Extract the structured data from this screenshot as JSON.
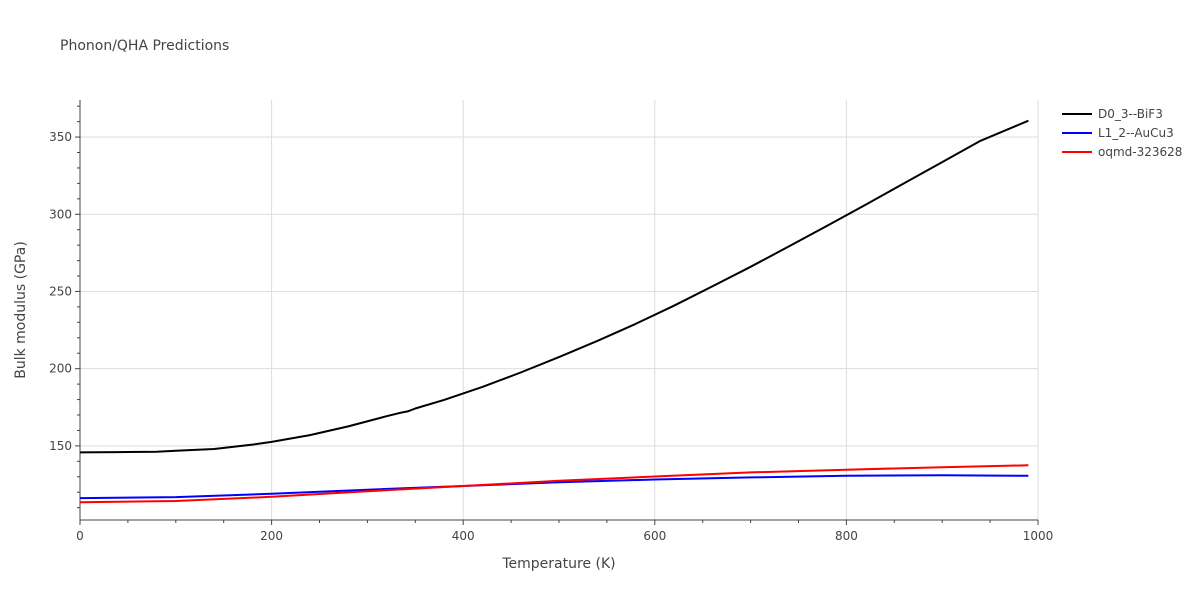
{
  "chart_data": {
    "type": "line",
    "title": "Phonon/QHA Predictions",
    "xlabel": "Temperature (K)",
    "ylabel": "Bulk modulus (GPa)",
    "xlim": [
      0,
      1000
    ],
    "ylim": [
      102,
      374
    ],
    "x_ticks": [
      0,
      200,
      400,
      600,
      800,
      1000
    ],
    "y_ticks": [
      150,
      200,
      250,
      300,
      350
    ],
    "grid": true,
    "legend_position": "top-right",
    "series": [
      {
        "name": "D0_3--BiF3",
        "color": "#000000",
        "points": [
          [
            0,
            145.8
          ],
          [
            40,
            146.0
          ],
          [
            80,
            146.2
          ],
          [
            100,
            146.8
          ],
          [
            140,
            148.0
          ],
          [
            180,
            150.8
          ],
          [
            200,
            152.6
          ],
          [
            240,
            157.0
          ],
          [
            280,
            162.6
          ],
          [
            320,
            169.2
          ],
          [
            335,
            171.5
          ],
          [
            342,
            172.3
          ],
          [
            350,
            174.2
          ],
          [
            380,
            179.8
          ],
          [
            420,
            188.2
          ],
          [
            460,
            197.5
          ],
          [
            500,
            207.5
          ],
          [
            540,
            218.0
          ],
          [
            580,
            229.0
          ],
          [
            620,
            240.8
          ],
          [
            660,
            253.3
          ],
          [
            700,
            266.0
          ],
          [
            740,
            279.2
          ],
          [
            780,
            292.6
          ],
          [
            820,
            306.2
          ],
          [
            860,
            320.0
          ],
          [
            900,
            333.8
          ],
          [
            940,
            347.6
          ],
          [
            990,
            360.6
          ]
        ]
      },
      {
        "name": "L1_2--AuCu3",
        "color": "#0000ff",
        "points": [
          [
            0,
            116.2
          ],
          [
            100,
            116.8
          ],
          [
            200,
            119.0
          ],
          [
            300,
            121.6
          ],
          [
            400,
            124.0
          ],
          [
            500,
            126.4
          ],
          [
            600,
            128.2
          ],
          [
            700,
            129.6
          ],
          [
            800,
            130.6
          ],
          [
            900,
            131.0
          ],
          [
            990,
            130.6
          ]
        ]
      },
      {
        "name": "oqmd-323628",
        "color": "#ff0000",
        "points": [
          [
            0,
            113.5
          ],
          [
            100,
            114.3
          ],
          [
            200,
            117.0
          ],
          [
            300,
            120.6
          ],
          [
            400,
            124.0
          ],
          [
            500,
            127.4
          ],
          [
            600,
            130.2
          ],
          [
            700,
            132.8
          ],
          [
            800,
            134.6
          ],
          [
            900,
            136.2
          ],
          [
            990,
            137.4
          ]
        ]
      }
    ]
  }
}
